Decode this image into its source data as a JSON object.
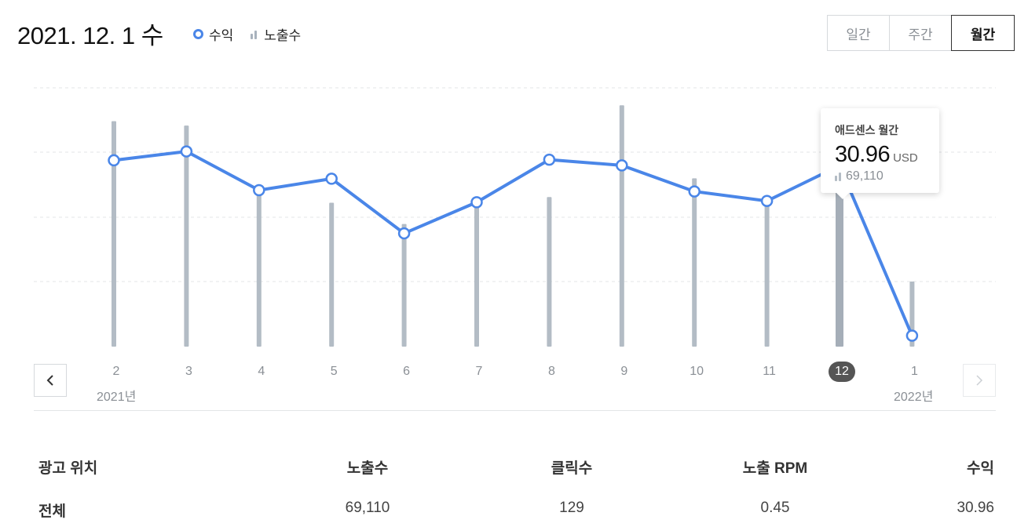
{
  "header": {
    "date_title": "2021. 12. 1 수",
    "legend": {
      "revenue_label": "수익",
      "impressions_label": "노출수"
    }
  },
  "period_tabs": [
    {
      "label": "일간",
      "active": false
    },
    {
      "label": "주간",
      "active": false
    },
    {
      "label": "월간",
      "active": true
    }
  ],
  "tooltip": {
    "title": "애드센스 월간",
    "value": "30.96",
    "unit": "USD",
    "impressions": "69,110"
  },
  "x_axis": {
    "months": [
      "2",
      "3",
      "4",
      "5",
      "6",
      "7",
      "8",
      "9",
      "10",
      "11",
      "12",
      "1"
    ],
    "selected_index": 10,
    "year_start_label": "2021년",
    "year_end_label": "2022년"
  },
  "colors": {
    "revenue_line": "#4a86e8",
    "impressions_bar": "#b3bcc5",
    "active_bar": "#a5aeb8"
  },
  "chart_data": {
    "type": "line",
    "categories": [
      "2",
      "3",
      "4",
      "5",
      "6",
      "7",
      "8",
      "9",
      "10",
      "11",
      "12",
      "1"
    ],
    "series": [
      {
        "name": "수익",
        "values": [
          31.8,
          33.2,
          27.1,
          28.9,
          20.3,
          25.2,
          31.9,
          31.0,
          26.9,
          25.4,
          30.96,
          4.2
        ]
      },
      {
        "name": "노출수",
        "values": [
          71000,
          69600,
          51000,
          45300,
          38600,
          46500,
          47100,
          76000,
          53000,
          47500,
          69110,
          20500
        ]
      }
    ],
    "grid": true
  },
  "table": {
    "headers": {
      "placement": "광고 위치",
      "impressions": "노출수",
      "clicks": "클릭수",
      "rpm": "노출 RPM",
      "revenue": "수익"
    },
    "rows": [
      {
        "placement": "전체",
        "impressions": "69,110",
        "clicks": "129",
        "rpm": "0.45",
        "revenue": "30.96"
      }
    ]
  }
}
